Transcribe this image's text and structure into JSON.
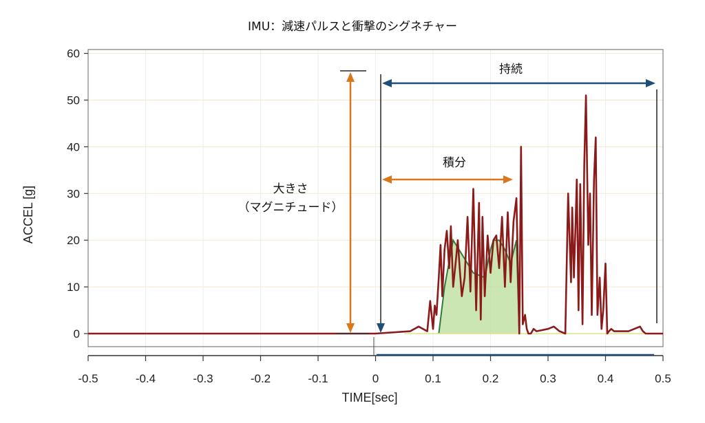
{
  "chart_data": {
    "type": "line",
    "title": "IMU：減速パルスと衝撃のシグネチャー",
    "xlabel": "TIME[sec]",
    "ylabel": "ACCEL [g]",
    "xlim": [
      -0.5,
      0.5
    ],
    "ylim": [
      -5,
      61
    ],
    "xticks": [
      "-0.5",
      "-0.4",
      "-0.3",
      "-0.2",
      "-0.1",
      "0",
      "0.1",
      "0.2",
      "0.3",
      "0.4",
      "0.5"
    ],
    "xtick_values": [
      -0.5,
      -0.4,
      -0.3,
      -0.2,
      -0.1,
      0,
      0.1,
      0.2,
      0.3,
      0.4,
      0.5
    ],
    "yticks": [
      "60",
      "50",
      "40",
      "30",
      "20",
      "10",
      "0"
    ],
    "ytick_values": [
      60,
      50,
      40,
      30,
      20,
      10,
      0
    ],
    "grid": true,
    "colors": {
      "signal": "#8b1a1a",
      "envelope": "#2e7d3a",
      "fill": "#b9dc9a",
      "duration": "#1f4e79",
      "magnitude": "#d9771c",
      "grid": "#f3e9c8"
    },
    "annotations": {
      "duration": "持続",
      "integral": "積分",
      "magnitude_line1": "大きさ",
      "magnitude_line2": "（マグニチュード）"
    },
    "series": [
      {
        "x": [
          -0.5,
          -0.05,
          0.0,
          0.06,
          0.075,
          0.09,
          0.095,
          0.1,
          0.103,
          0.106,
          0.11,
          0.113,
          0.116,
          0.12,
          0.124,
          0.128,
          0.131,
          0.135,
          0.14,
          0.143,
          0.147,
          0.15,
          0.155,
          0.16,
          0.165,
          0.17,
          0.175,
          0.18,
          0.183,
          0.186,
          0.19,
          0.195,
          0.2,
          0.205,
          0.21,
          0.215,
          0.22,
          0.225,
          0.23,
          0.235,
          0.24,
          0.245,
          0.25,
          0.253,
          0.256,
          0.26,
          0.263,
          0.266,
          0.27,
          0.275,
          0.28,
          0.3,
          0.31,
          0.32,
          0.33,
          0.335,
          0.34,
          0.342,
          0.345,
          0.348,
          0.35,
          0.353,
          0.356,
          0.36,
          0.363,
          0.366,
          0.37,
          0.373,
          0.376,
          0.38,
          0.383,
          0.386,
          0.39,
          0.393,
          0.396,
          0.4,
          0.403,
          0.406,
          0.41,
          0.415,
          0.42,
          0.44,
          0.46,
          0.465,
          0.47,
          0.48,
          0.5
        ],
        "y": [
          0,
          0,
          0,
          0.5,
          1.5,
          0.5,
          7,
          1,
          6,
          4,
          12,
          19,
          8,
          18,
          22,
          14,
          23,
          10,
          16,
          20,
          13,
          8,
          12,
          25,
          9,
          31,
          5,
          28,
          3,
          25,
          8,
          21,
          13,
          20,
          21,
          14,
          25,
          10,
          26,
          11,
          24,
          29,
          0,
          40,
          2,
          4,
          1,
          0,
          0,
          1,
          0.5,
          1,
          1.5,
          0.5,
          0,
          30,
          11,
          27,
          12,
          24,
          33,
          5,
          32,
          2,
          36,
          51,
          19,
          30,
          4,
          33,
          42,
          4,
          12,
          1,
          5,
          15,
          0,
          0.5,
          1,
          0.5,
          0.5,
          0.5,
          1.5,
          0.5,
          0,
          0,
          0
        ]
      }
    ]
  }
}
